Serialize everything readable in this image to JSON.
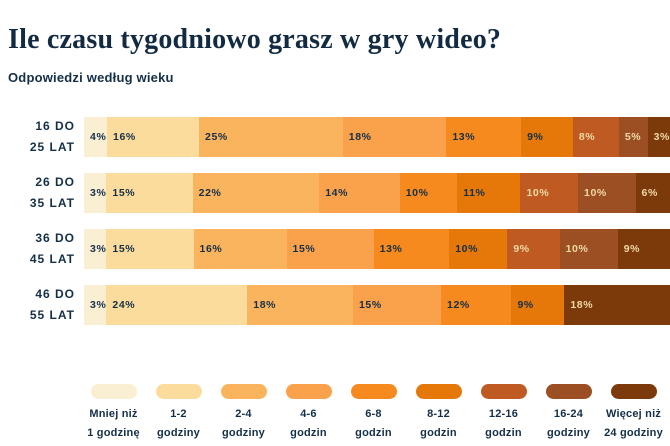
{
  "header": {
    "title": "Ile czasu tygodniowo grasz w gry wideo?",
    "subtitle": "Odpowiedzi według wieku"
  },
  "colors": {
    "background": "#FFFFFF",
    "text_dark": "#142F47",
    "text_light_on_dark_segments": "#F0DAA5",
    "palette": [
      "#FAEFD3",
      "#FBDC9D",
      "#FBB45E",
      "#F9A14B",
      "#F78A1E",
      "#E6780A",
      "#BE5A22",
      "#9C4F23",
      "#7C3A0B"
    ]
  },
  "legend": [
    {
      "label": "Mniej niż\n1 godzinę",
      "color_index": 0
    },
    {
      "label": "1-2\ngodziny",
      "color_index": 1
    },
    {
      "label": "2-4\ngodziny",
      "color_index": 2
    },
    {
      "label": "4-6\ngodzin",
      "color_index": 3
    },
    {
      "label": "6-8\ngodzin",
      "color_index": 4
    },
    {
      "label": "8-12\ngodzin",
      "color_index": 5
    },
    {
      "label": "12-16\ngodzin",
      "color_index": 6
    },
    {
      "label": "16-24\ngodziny",
      "color_index": 7
    },
    {
      "label": "Więcej niż\n24 godziny",
      "color_index": 8
    }
  ],
  "rows": [
    {
      "label": "16 DO\n25 LAT",
      "segments": [
        {
          "value": 4,
          "label": "4%",
          "color_index": 0
        },
        {
          "value": 16,
          "label": "16%",
          "color_index": 1
        },
        {
          "value": 25,
          "label": "25%",
          "color_index": 2
        },
        {
          "value": 18,
          "label": "18%",
          "color_index": 3
        },
        {
          "value": 13,
          "label": "13%",
          "color_index": 4
        },
        {
          "value": 9,
          "label": "9%",
          "color_index": 5
        },
        {
          "value": 8,
          "label": "8%",
          "color_index": 6
        },
        {
          "value": 5,
          "label": "5%",
          "color_index": 7
        },
        {
          "value": 3,
          "label": "3%",
          "color_index": 8
        }
      ]
    },
    {
      "label": "26 DO\n35 LAT",
      "segments": [
        {
          "value": 3,
          "label": "3%",
          "color_index": 0
        },
        {
          "value": 15,
          "label": "15%",
          "color_index": 1
        },
        {
          "value": 22,
          "label": "22%",
          "color_index": 2
        },
        {
          "value": 14,
          "label": "14%",
          "color_index": 3
        },
        {
          "value": 10,
          "label": "10%",
          "color_index": 4
        },
        {
          "value": 11,
          "label": "11%",
          "color_index": 5
        },
        {
          "value": 10,
          "label": "10%",
          "color_index": 6
        },
        {
          "value": 10,
          "label": "10%",
          "color_index": 7
        },
        {
          "value": 6,
          "label": "6%",
          "color_index": 8
        }
      ]
    },
    {
      "label": "36 DO\n45 LAT",
      "segments": [
        {
          "value": 3,
          "label": "3%",
          "color_index": 0
        },
        {
          "value": 15,
          "label": "15%",
          "color_index": 1
        },
        {
          "value": 16,
          "label": "16%",
          "color_index": 2
        },
        {
          "value": 15,
          "label": "15%",
          "color_index": 3
        },
        {
          "value": 13,
          "label": "13%",
          "color_index": 4
        },
        {
          "value": 10,
          "label": "10%",
          "color_index": 5
        },
        {
          "value": 9,
          "label": "9%",
          "color_index": 6
        },
        {
          "value": 10,
          "label": "10%",
          "color_index": 7
        },
        {
          "value": 9,
          "label": "9%",
          "color_index": 8
        }
      ]
    },
    {
      "label": "46 DO\n55 LAT",
      "segments": [
        {
          "value": 3,
          "label": "3%",
          "color_index": 0
        },
        {
          "value": 24,
          "label": "24%",
          "color_index": 1
        },
        {
          "value": 18,
          "label": "18%",
          "color_index": 2
        },
        {
          "value": 15,
          "label": "15%",
          "color_index": 3
        },
        {
          "value": 12,
          "label": "12%",
          "color_index": 4
        },
        {
          "value": 9,
          "label": "9%",
          "color_index": 5
        },
        {
          "value": 18,
          "label": "18%",
          "color_index": 8
        }
      ]
    }
  ],
  "chart_data": {
    "type": "bar",
    "variant": "horizontal-stacked-percentage",
    "title": "Ile czasu tygodniowo grasz w gry wideo?",
    "subtitle": "Odpowiedzi według wieku",
    "unit": "%",
    "legend_position": "bottom",
    "grid": false,
    "categories": [
      "16 do 25 lat",
      "26 do 35 lat",
      "36 do 45 lat",
      "46 do 55 lat"
    ],
    "series": [
      {
        "name": "Mniej niż 1 godzinę",
        "values": [
          4,
          3,
          3,
          3
        ]
      },
      {
        "name": "1-2 godziny",
        "values": [
          16,
          15,
          15,
          24
        ]
      },
      {
        "name": "2-4 godziny",
        "values": [
          25,
          22,
          16,
          18
        ]
      },
      {
        "name": "4-6 godzin",
        "values": [
          18,
          14,
          15,
          15
        ]
      },
      {
        "name": "6-8 godzin",
        "values": [
          13,
          10,
          13,
          12
        ]
      },
      {
        "name": "8-12 godzin",
        "values": [
          9,
          11,
          10,
          9
        ]
      },
      {
        "name": "12-16 godzin",
        "values": [
          8,
          10,
          9,
          0
        ]
      },
      {
        "name": "16-24 godziny",
        "values": [
          5,
          10,
          10,
          0
        ]
      },
      {
        "name": "Więcej niż 24 godziny",
        "values": [
          3,
          6,
          9,
          18
        ]
      }
    ]
  }
}
